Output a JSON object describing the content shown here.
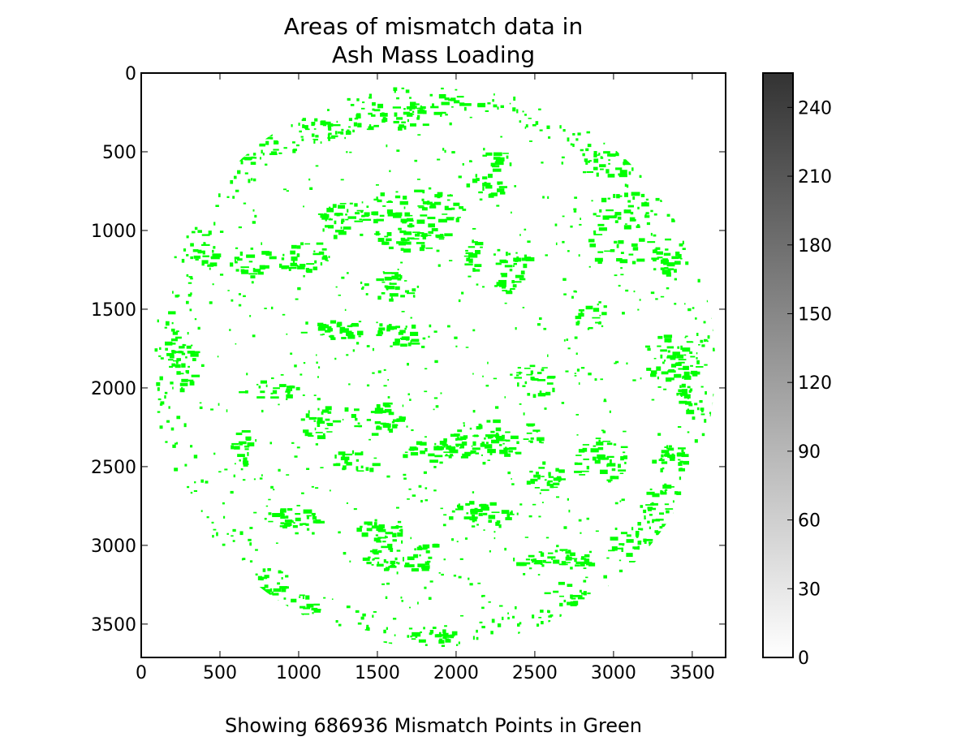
{
  "chart_data": {
    "type": "heatmap",
    "title_lines": [
      "Areas of mismatch data in",
      "Ash Mass Loading"
    ],
    "caption": "Showing 686936 Mismatch Points in Green",
    "xlim": [
      0,
      3712
    ],
    "ylim": [
      3712,
      0
    ],
    "x_ticks": [
      0,
      500,
      1000,
      1500,
      2000,
      2500,
      3000,
      3500
    ],
    "y_ticks": [
      0,
      500,
      1000,
      1500,
      2000,
      2500,
      3000,
      3500
    ],
    "colorbar": {
      "range": [
        0,
        255
      ],
      "ticks": [
        0,
        30,
        60,
        90,
        120,
        150,
        180,
        210,
        240
      ],
      "colormap": "Greys",
      "color_low": "#ffffff",
      "color_high": "#333333"
    },
    "disk": {
      "center": [
        1856,
        1856
      ],
      "radius": 1790
    },
    "mismatch_color": "#00ff00",
    "mismatch_points": 686936,
    "mismatch_clusters": [
      [
        1740,
        850,
        340,
        130,
        60
      ],
      [
        1700,
        1040,
        260,
        80,
        40
      ],
      [
        1300,
        930,
        200,
        110,
        35
      ],
      [
        3050,
        1000,
        230,
        260,
        50
      ],
      [
        3320,
        1160,
        90,
        110,
        25
      ],
      [
        2250,
        2300,
        300,
        120,
        55
      ],
      [
        1900,
        2380,
        280,
        90,
        40
      ],
      [
        1620,
        1650,
        160,
        90,
        30
      ],
      [
        1200,
        1620,
        220,
        60,
        30
      ],
      [
        1600,
        270,
        300,
        80,
        35
      ],
      [
        1900,
        190,
        240,
        60,
        25
      ],
      [
        1100,
        350,
        220,
        70,
        30
      ],
      [
        2350,
        1250,
        120,
        160,
        30
      ],
      [
        2100,
        1150,
        60,
        110,
        18
      ],
      [
        3300,
        1800,
        130,
        150,
        35
      ],
      [
        3450,
        1820,
        80,
        120,
        20
      ],
      [
        1000,
        1150,
        180,
        100,
        30
      ],
      [
        1450,
        2180,
        200,
        110,
        35
      ],
      [
        1100,
        2200,
        120,
        120,
        25
      ],
      [
        2550,
        2550,
        110,
        110,
        25
      ],
      [
        2900,
        2450,
        180,
        150,
        40
      ],
      [
        3350,
        2450,
        110,
        90,
        25
      ],
      [
        3300,
        2800,
        140,
        220,
        35
      ],
      [
        3100,
        3000,
        150,
        100,
        25
      ],
      [
        2600,
        3080,
        280,
        60,
        40
      ],
      [
        2150,
        2800,
        200,
        90,
        35
      ],
      [
        1650,
        3050,
        260,
        110,
        45
      ],
      [
        1500,
        2900,
        150,
        70,
        25
      ],
      [
        950,
        2820,
        180,
        60,
        30
      ],
      [
        1000,
        3400,
        130,
        90,
        25
      ],
      [
        800,
        3250,
        100,
        110,
        20
      ],
      [
        620,
        2400,
        60,
        140,
        18
      ],
      [
        250,
        1850,
        90,
        170,
        30
      ],
      [
        180,
        1650,
        50,
        150,
        15
      ],
      [
        2950,
        550,
        160,
        120,
        25
      ],
      [
        700,
        1200,
        140,
        90,
        22
      ],
      [
        650,
        450,
        220,
        120,
        30
      ],
      [
        400,
        1100,
        80,
        140,
        18
      ],
      [
        2500,
        1950,
        140,
        100,
        25
      ],
      [
        1850,
        3570,
        180,
        40,
        18
      ],
      [
        2700,
        3300,
        140,
        80,
        20
      ],
      [
        2850,
        1550,
        100,
        80,
        15
      ],
      [
        800,
        2000,
        200,
        60,
        20
      ],
      [
        2200,
        700,
        150,
        80,
        18
      ],
      [
        3450,
        2050,
        60,
        120,
        15
      ],
      [
        1350,
        2450,
        150,
        80,
        20
      ],
      [
        2250,
        550,
        100,
        60,
        14
      ],
      [
        1550,
        1350,
        180,
        90,
        25
      ]
    ]
  }
}
